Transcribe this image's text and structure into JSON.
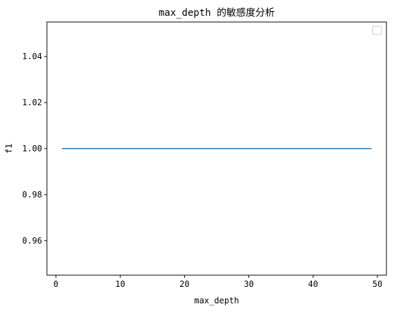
{
  "chart_data": {
    "type": "line",
    "title": "max_depth 的敏感度分析",
    "xlabel": "max_depth",
    "ylabel": "f1",
    "xlim": [
      -1.4,
      51.4
    ],
    "ylim": [
      0.945,
      1.055
    ],
    "xticks": [
      0,
      10,
      20,
      30,
      40,
      50
    ],
    "xtick_labels": [
      "0",
      "10",
      "20",
      "30",
      "40",
      "50"
    ],
    "yticks": [
      0.96,
      0.98,
      1.0,
      1.02,
      1.04
    ],
    "ytick_labels": [
      "0.96",
      "0.98",
      "1.00",
      "1.02",
      "1.04"
    ],
    "grid": false,
    "legend": "top-right",
    "series": [
      {
        "color": "#1f77b4",
        "x": [
          1,
          49
        ],
        "y": [
          1.0,
          1.0
        ]
      }
    ]
  }
}
